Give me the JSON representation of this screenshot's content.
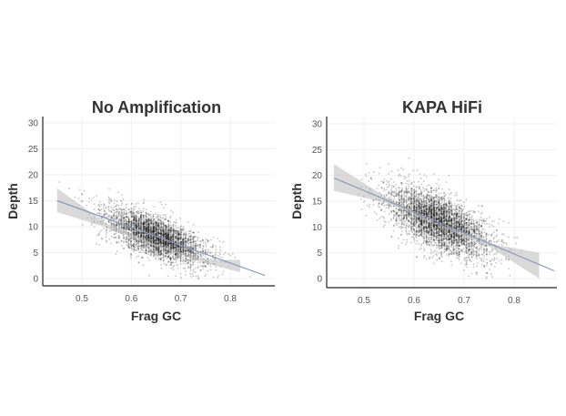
{
  "chart_data": [
    {
      "type": "scatter",
      "title": "No Amplification",
      "xlabel": "Frag GC",
      "ylabel": "Depth",
      "xticks": [
        "0.5",
        "0.6",
        "0.7",
        "0.8"
      ],
      "yticks": [
        "0",
        "5",
        "10",
        "15",
        "20",
        "25",
        "30"
      ],
      "xlim": [
        0.42,
        0.88
      ],
      "ylim": [
        -1,
        31
      ],
      "grid": true,
      "point_color": "#000000",
      "fit_line_color": "#8a9bb8",
      "band_color": "#bbbbbb",
      "regression": {
        "x": [
          0.45,
          0.87
        ],
        "y": [
          15.0,
          0.6
        ]
      },
      "confidence_band": {
        "x": [
          0.45,
          0.55,
          0.65,
          0.75,
          0.82
        ],
        "lower": [
          12.8,
          9.8,
          6.2,
          3.0,
          1.2
        ],
        "upper": [
          17.4,
          10.6,
          6.6,
          3.6,
          3.6
        ]
      },
      "point_cloud": {
        "count": 3500,
        "x_center": 0.65,
        "x_sd": 0.05,
        "residual_sd": 2.0,
        "x_range": [
          0.45,
          0.86
        ],
        "y_min": 0
      }
    },
    {
      "type": "scatter",
      "title": "KAPA HiFi",
      "xlabel": "Frag GC",
      "ylabel": "Depth",
      "xticks": [
        "0.5",
        "0.6",
        "0.7",
        "0.8"
      ],
      "yticks": [
        "0",
        "5",
        "10",
        "15",
        "20",
        "25",
        "30"
      ],
      "xlim": [
        0.42,
        0.89
      ],
      "ylim": [
        -1,
        31
      ],
      "grid": true,
      "point_color": "#000000",
      "fit_line_color": "#8a9bb8",
      "band_color": "#bbbbbb",
      "regression": {
        "x": [
          0.44,
          0.88
        ],
        "y": [
          19.5,
          1.5
        ]
      },
      "confidence_band": {
        "x": [
          0.44,
          0.55,
          0.65,
          0.75,
          0.85
        ],
        "lower": [
          17.0,
          14.6,
          10.2,
          6.2,
          0.0
        ],
        "upper": [
          22.2,
          15.4,
          10.6,
          6.8,
          5.0
        ]
      },
      "point_cloud": {
        "count": 4000,
        "x_center": 0.65,
        "x_sd": 0.05,
        "residual_sd": 2.6,
        "x_range": [
          0.44,
          0.86
        ],
        "y_min": 0
      }
    }
  ]
}
